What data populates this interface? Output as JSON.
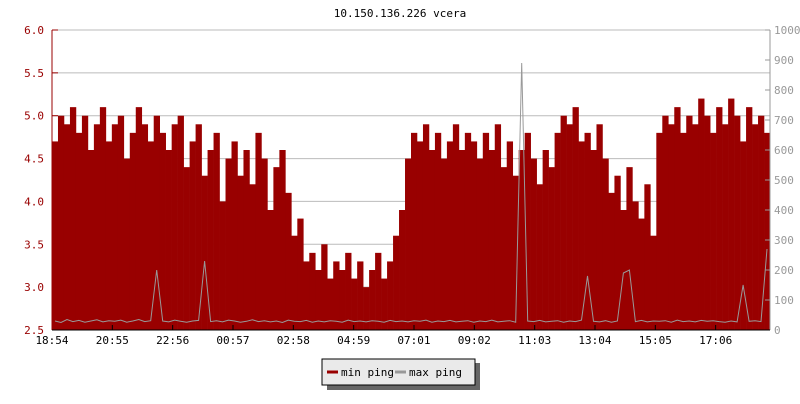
{
  "chart_data": {
    "type": "bar",
    "title": "10.150.136.226 vcera",
    "sample_interval_minutes": 12,
    "x_tick_labels": [
      "18:54",
      "20:55",
      "22:56",
      "00:57",
      "02:58",
      "04:59",
      "07:01",
      "09:02",
      "11:03",
      "13:04",
      "15:05",
      "17:06"
    ],
    "y_left": {
      "ylim": [
        2.5,
        6.0
      ],
      "tick_labels": [
        "2.5",
        "3.0",
        "3.5",
        "4.0",
        "4.5",
        "5.0",
        "5.5",
        "6.0"
      ],
      "color": "#990000"
    },
    "y_right": {
      "ylim": [
        0,
        1000
      ],
      "tick_labels": [
        "0",
        "100",
        "200",
        "300",
        "400",
        "500",
        "600",
        "700",
        "800",
        "900",
        "1000"
      ],
      "color": "#999999"
    },
    "grid": true,
    "legend_position": "bottom-center",
    "series": [
      {
        "name": "min ping",
        "axis": "left",
        "color": "#990000",
        "style": "bar",
        "values": [
          4.7,
          5.0,
          4.9,
          5.1,
          4.8,
          5.0,
          4.6,
          4.9,
          5.1,
          4.7,
          4.9,
          5.0,
          4.5,
          4.8,
          5.1,
          4.9,
          4.7,
          5.0,
          4.8,
          4.6,
          4.9,
          5.0,
          4.4,
          4.7,
          4.9,
          4.3,
          4.6,
          4.8,
          4.0,
          4.5,
          4.7,
          4.3,
          4.6,
          4.2,
          4.8,
          4.5,
          3.9,
          4.4,
          4.6,
          4.1,
          3.6,
          3.8,
          3.3,
          3.4,
          3.2,
          3.5,
          3.1,
          3.3,
          3.2,
          3.4,
          3.1,
          3.3,
          3.0,
          3.2,
          3.4,
          3.1,
          3.3,
          3.6,
          3.9,
          4.5,
          4.8,
          4.7,
          4.9,
          4.6,
          4.8,
          4.5,
          4.7,
          4.9,
          4.6,
          4.8,
          4.7,
          4.5,
          4.8,
          4.6,
          4.9,
          4.4,
          4.7,
          4.3,
          4.6,
          4.8,
          4.5,
          4.2,
          4.6,
          4.4,
          4.8,
          5.0,
          4.9,
          5.1,
          4.7,
          4.8,
          4.6,
          4.9,
          4.5,
          4.1,
          4.3,
          3.9,
          4.4,
          4.0,
          3.8,
          4.2,
          3.6,
          4.8,
          5.0,
          4.9,
          5.1,
          4.8,
          5.0,
          4.9,
          5.2,
          5.0,
          4.8,
          5.1,
          4.9,
          5.2,
          5.0,
          4.7,
          5.1,
          4.9,
          5.0,
          4.8
        ]
      },
      {
        "name": "max ping",
        "axis": "right",
        "color": "#999999",
        "style": "line",
        "values": [
          30,
          25,
          35,
          28,
          32,
          26,
          30,
          34,
          27,
          31,
          29,
          33,
          26,
          30,
          35,
          28,
          31,
          200,
          30,
          27,
          33,
          29,
          26,
          30,
          32,
          230,
          28,
          31,
          27,
          33,
          30,
          26,
          29,
          34,
          28,
          31,
          27,
          30,
          25,
          33,
          29,
          28,
          32,
          26,
          30,
          27,
          31,
          29,
          26,
          33,
          28,
          30,
          27,
          31,
          29,
          26,
          32,
          28,
          30,
          27,
          31,
          29,
          33,
          26,
          30,
          28,
          32,
          27,
          29,
          31,
          26,
          30,
          28,
          33,
          27,
          29,
          31,
          26,
          890,
          30,
          28,
          32,
          27,
          29,
          31,
          26,
          30,
          28,
          33,
          180,
          29,
          27,
          31,
          26,
          30,
          190,
          200,
          28,
          32,
          27,
          30,
          29,
          31,
          26,
          33,
          28,
          30,
          27,
          32,
          29,
          31,
          28,
          26,
          30,
          27,
          150,
          29,
          31,
          28,
          270
        ]
      }
    ]
  }
}
